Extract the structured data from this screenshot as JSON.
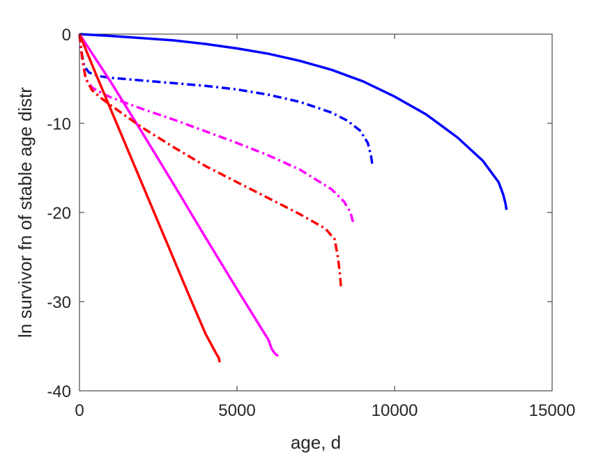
{
  "chart_data": {
    "type": "line",
    "title": "",
    "xlabel": "age, d",
    "ylabel": "ln survivor fn of stable age distr",
    "xlim": [
      0,
      15000
    ],
    "ylim": [
      -40,
      0
    ],
    "xticks": [
      "0",
      "5000",
      "10000",
      "15000"
    ],
    "yticks": [
      "0",
      "-10",
      "-20",
      "-30",
      "-40"
    ],
    "grid": false,
    "legend": "none",
    "series": [
      {
        "color": "#0000ff",
        "style": "solid",
        "x": [
          0,
          1000,
          2000,
          3000,
          4000,
          5000,
          6000,
          7000,
          8000,
          9000,
          10000,
          11000,
          12000,
          12800,
          13300,
          13450,
          13520,
          13550
        ],
        "y": [
          0,
          -0.2,
          -0.45,
          -0.7,
          -1.1,
          -1.6,
          -2.2,
          -3.0,
          -4.0,
          -5.3,
          -7.0,
          -9.0,
          -11.6,
          -14.2,
          -16.6,
          -18.0,
          -19.0,
          -19.7
        ]
      },
      {
        "color": "#0000ff",
        "style": "dashdot",
        "x": [
          0,
          50,
          150,
          300,
          600,
          1000,
          2000,
          3000,
          4000,
          5000,
          6000,
          7000,
          8000,
          8500,
          8900,
          9150,
          9250,
          9300
        ],
        "y": [
          0,
          -1.8,
          -3.6,
          -4.3,
          -4.7,
          -4.9,
          -5.2,
          -5.5,
          -5.8,
          -6.2,
          -6.8,
          -7.6,
          -8.8,
          -9.7,
          -10.8,
          -12.2,
          -13.6,
          -14.8
        ]
      },
      {
        "color": "#ff00ff",
        "style": "solid",
        "x": [
          0,
          1000,
          2000,
          3000,
          4000,
          5000,
          6000,
          6100,
          6200,
          6300
        ],
        "y": [
          0,
          -5.4,
          -11.1,
          -16.9,
          -22.8,
          -28.6,
          -34.3,
          -35.3,
          -35.8,
          -36.1
        ]
      },
      {
        "color": "#ff00ff",
        "style": "dashdot",
        "x": [
          0,
          100,
          200,
          400,
          700,
          1000,
          2000,
          3000,
          4000,
          5000,
          6000,
          7000,
          8000,
          8400,
          8600,
          8700
        ],
        "y": [
          0,
          -3.0,
          -5.0,
          -6.0,
          -6.6,
          -7.1,
          -8.4,
          -9.6,
          -10.9,
          -12.2,
          -13.6,
          -15.2,
          -17.4,
          -18.8,
          -20.0,
          -21.3
        ]
      },
      {
        "color": "#ff0000",
        "style": "solid",
        "x": [
          0,
          500,
          1000,
          1500,
          2000,
          2500,
          3000,
          3500,
          4000,
          4350,
          4420,
          4450
        ],
        "y": [
          0,
          -4.3,
          -8.5,
          -12.7,
          -16.9,
          -21.1,
          -25.3,
          -29.5,
          -33.6,
          -35.9,
          -36.3,
          -36.8
        ]
      },
      {
        "color": "#ff0000",
        "style": "dashdot",
        "x": [
          0,
          100,
          200,
          400,
          700,
          1000,
          2000,
          3000,
          4000,
          5000,
          6000,
          7000,
          7800,
          8100,
          8200,
          8270,
          8300
        ],
        "y": [
          0,
          -3.0,
          -5.0,
          -6.3,
          -7.2,
          -8.0,
          -10.5,
          -12.7,
          -14.8,
          -16.6,
          -18.4,
          -20.2,
          -21.8,
          -23.0,
          -25.0,
          -27.0,
          -28.5
        ]
      }
    ]
  }
}
